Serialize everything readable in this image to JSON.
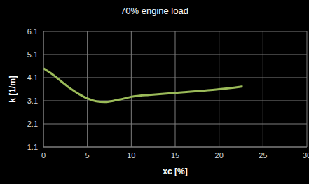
{
  "chart_data": {
    "type": "line",
    "title": "70% engine load",
    "x_label": "xc [%]",
    "y_label": "k [1/m]",
    "x": [
      0,
      1,
      2,
      3,
      4,
      5,
      6,
      7,
      8,
      9,
      10,
      11,
      12,
      13,
      14,
      15,
      16,
      17,
      18,
      19,
      20,
      21,
      22,
      22.7
    ],
    "series": [
      {
        "name": "k",
        "color": "#9bbb59",
        "values": [
          4.5,
          4.25,
          3.95,
          3.65,
          3.4,
          3.2,
          3.08,
          3.05,
          3.1,
          3.18,
          3.27,
          3.32,
          3.35,
          3.38,
          3.41,
          3.44,
          3.47,
          3.5,
          3.53,
          3.56,
          3.6,
          3.64,
          3.68,
          3.72
        ]
      }
    ],
    "xlim": [
      0,
      30
    ],
    "xticks": [
      0,
      5,
      10,
      15,
      20,
      25,
      30
    ],
    "ylim": [
      1.1,
      6.1
    ],
    "yticks": [
      1.1,
      2.1,
      3.1,
      4.1,
      5.1,
      6.1
    ],
    "grid": true
  }
}
